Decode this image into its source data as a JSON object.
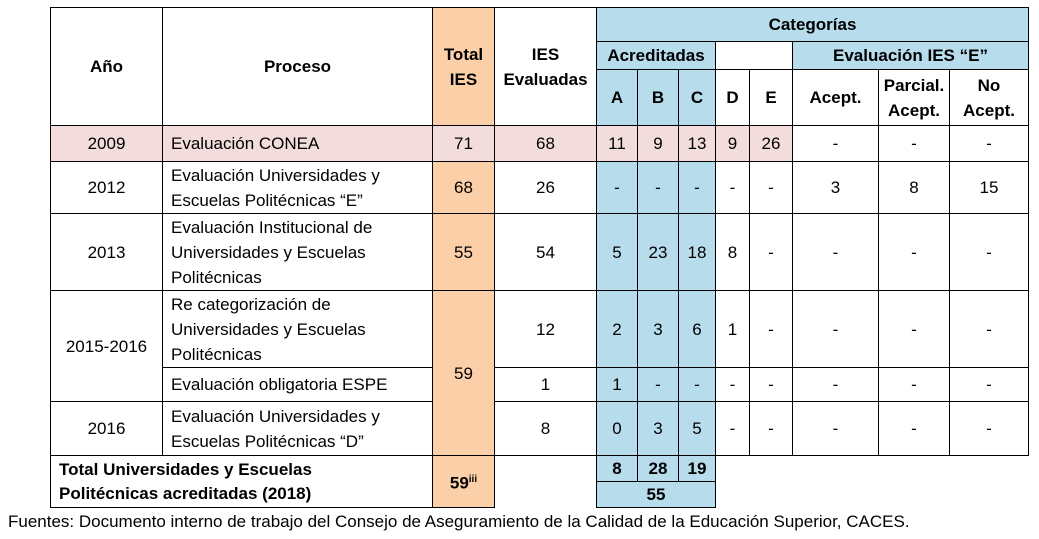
{
  "headers": {
    "ano": "Año",
    "proceso": "Proceso",
    "total_ies_l1": "Total",
    "total_ies_l2": "IES",
    "ies_eval_l1": "IES",
    "ies_eval_l2": "Evaluadas",
    "categorias": "Categorías",
    "acreditadas": "Acreditadas",
    "evaluacion_e": "Evaluación IES “E”",
    "cat_a": "A",
    "cat_b": "B",
    "cat_c": "C",
    "cat_d": "D",
    "cat_e": "E",
    "acept": "Acept.",
    "parcial_l1": "Parcial.",
    "parcial_l2": "Acept.",
    "no_l1": "No",
    "no_l2": "Acept."
  },
  "rows": [
    {
      "year": "2009",
      "proc": [
        "Evaluación CONEA"
      ],
      "total": "71",
      "evaluadas": "68",
      "a": "11",
      "b": "9",
      "c": "13",
      "d": "9",
      "e": "26",
      "acept": "-",
      "parcial": "-",
      "noacept": "-"
    },
    {
      "year": "2012",
      "proc": [
        "Evaluación Universidades y",
        "Escuelas Politécnicas “E”"
      ],
      "total": "68",
      "evaluadas": "26",
      "a": "-",
      "b": "-",
      "c": "-",
      "d": "-",
      "e": "-",
      "acept": "3",
      "parcial": "8",
      "noacept": "15"
    },
    {
      "year": "2013",
      "proc": [
        "Evaluación Institucional de",
        "Universidades y Escuelas",
        "Politécnicas"
      ],
      "total": "55",
      "evaluadas": "54",
      "a": "5",
      "b": "23",
      "c": "18",
      "d": "8",
      "e": "-",
      "acept": "-",
      "parcial": "-",
      "noacept": "-"
    },
    {
      "year": "2015-2016",
      "proc": [
        "Re categorización de",
        "Universidades y Escuelas",
        "Politécnicas"
      ],
      "total": "59",
      "evaluadas": "12",
      "a": "2",
      "b": "3",
      "c": "6",
      "d": "1",
      "e": "-",
      "acept": "-",
      "parcial": "-",
      "noacept": "-"
    },
    {
      "year": "",
      "proc": [
        "Evaluación obligatoria ESPE"
      ],
      "total": "",
      "evaluadas": "1",
      "a": "1",
      "b": "-",
      "c": "-",
      "d": "-",
      "e": "-",
      "acept": "-",
      "parcial": "-",
      "noacept": "-"
    },
    {
      "year": "2016",
      "proc": [
        "Evaluación Universidades y",
        "Escuelas Politécnicas “D”"
      ],
      "total": "",
      "evaluadas": "8",
      "a": "0",
      "b": "3",
      "c": "5",
      "d": "-",
      "e": "-",
      "acept": "-",
      "parcial": "-",
      "noacept": "-"
    }
  ],
  "total_row": {
    "label_l1": "Total Universidades y Escuelas",
    "label_l2": "Politécnicas acreditadas (2018)",
    "total": "59",
    "total_sup": "iii",
    "a": "8",
    "b": "28",
    "c": "19",
    "sum": "55"
  },
  "footer": "Fuentes: Documento interno de trabajo del Consejo de Aseguramiento de la Calidad de la Educación Superior, CACES."
}
